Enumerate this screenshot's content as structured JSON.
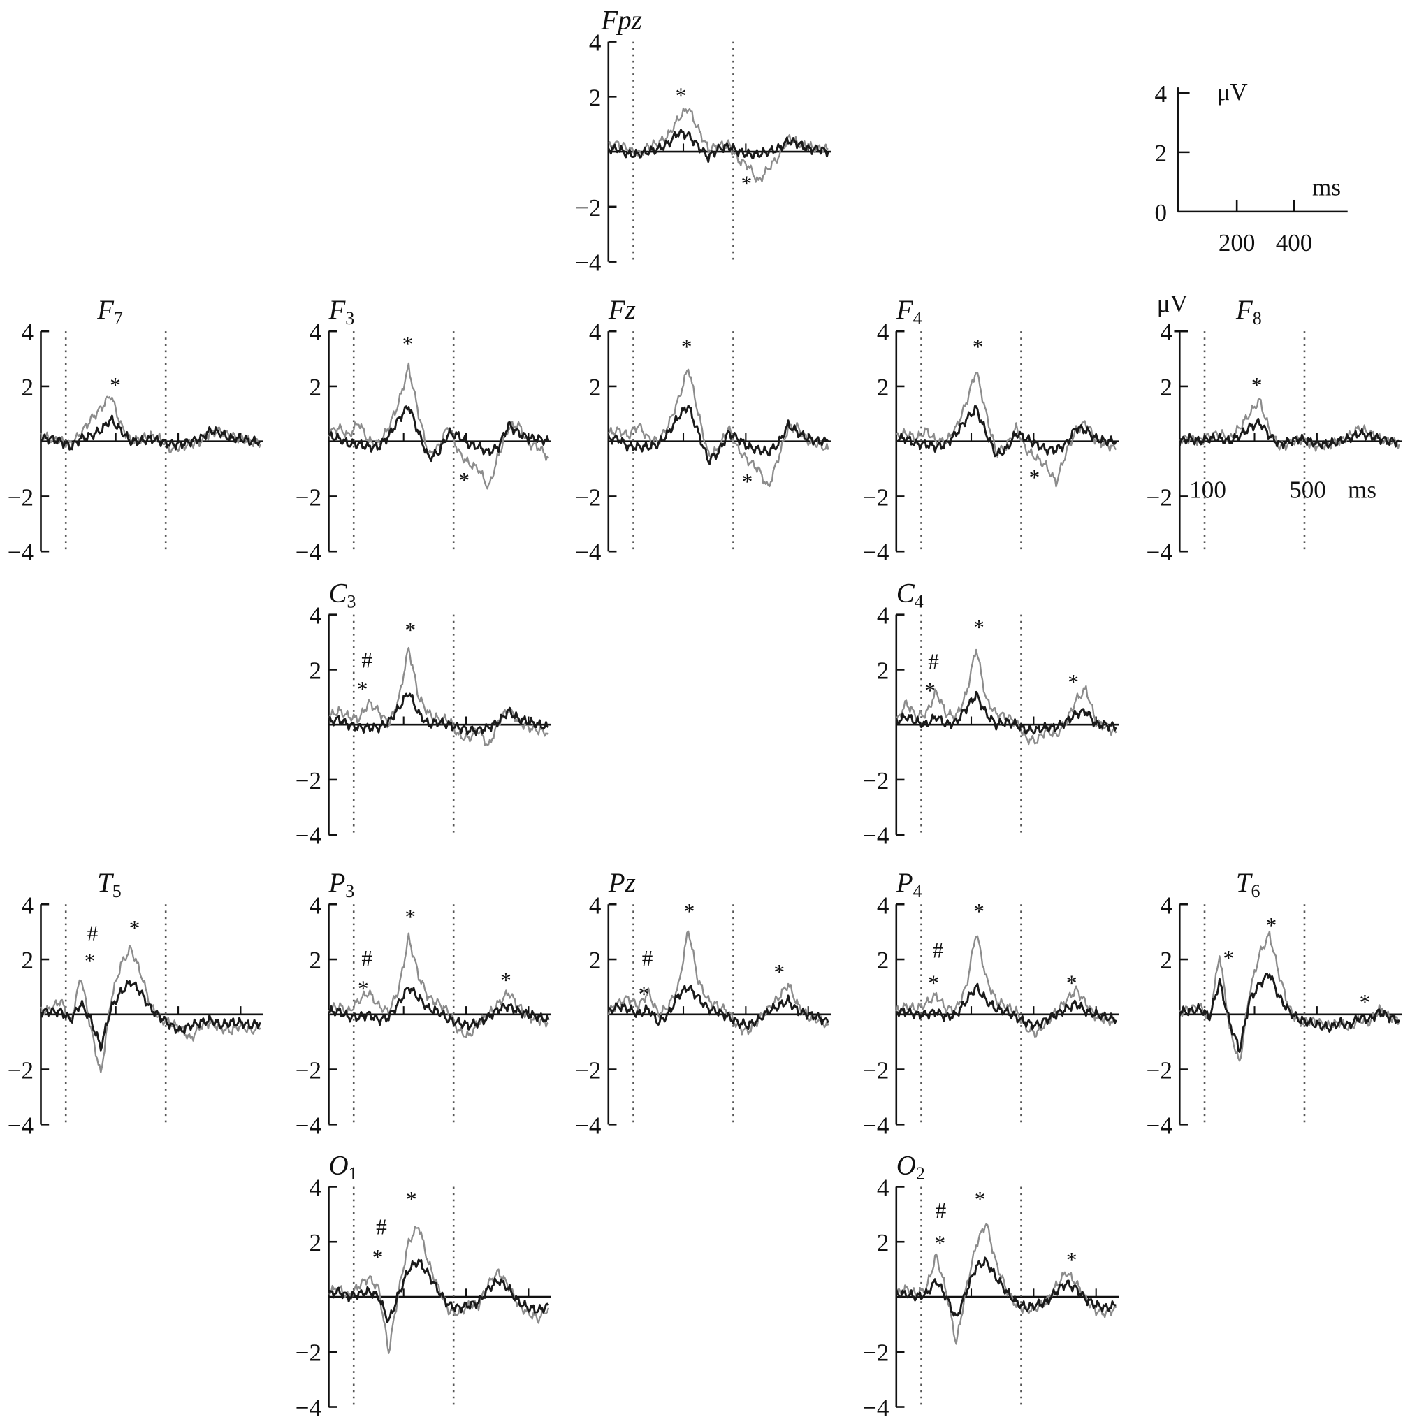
{
  "chart_data": {
    "type": "line",
    "xlabel": "ms",
    "ylabel": "μV",
    "ylim": [
      -4,
      4
    ],
    "xlim": [
      0,
      890
    ],
    "y_ticks": [
      "4",
      "2",
      "−2",
      "−4"
    ],
    "y_tick_values": [
      4,
      2,
      -2,
      -4
    ],
    "x_zero_line_ticks_ms": [
      300,
      550,
      800
    ],
    "dotted_markers_ms": [
      100,
      500
    ],
    "series_colors": {
      "gray": "#8c8c8c",
      "black": "#1a1a1a"
    },
    "time_ms": [
      0,
      40,
      80,
      120,
      160,
      200,
      240,
      280,
      320,
      360,
      400,
      440,
      480,
      520,
      560,
      600,
      640,
      680,
      720,
      760,
      800,
      840,
      880
    ],
    "scale_legend": {
      "unit_y": "μV",
      "unit_x": "ms",
      "y_ticks": [
        "4",
        "2",
        "0"
      ],
      "x_ticks": [
        "200",
        "400"
      ]
    },
    "f8_labels": {
      "unit_y": "μV",
      "t1": "100",
      "t2": "500",
      "unit_x": "ms"
    },
    "panels": [
      {
        "id": "Fpz",
        "label": "Fpz",
        "sub": "",
        "row": 0,
        "col": 2,
        "gray": [
          0.2,
          0.3,
          0.1,
          -0.1,
          0.2,
          0.3,
          0.6,
          1.2,
          1.6,
          0.8,
          0.1,
          0.2,
          0.3,
          -0.3,
          -0.5,
          -1.1,
          -0.6,
          -0.2,
          0.5,
          0.3,
          0.2,
          0.1,
          0.1
        ],
        "black": [
          0.1,
          0.1,
          -0.1,
          -0.1,
          0.0,
          0.1,
          0.3,
          0.7,
          0.6,
          0.2,
          -0.2,
          0.1,
          0.2,
          0.0,
          -0.1,
          -0.1,
          0.0,
          0.1,
          0.4,
          0.3,
          0.1,
          0.1,
          0.0
        ],
        "annotations": [
          {
            "sym": "*",
            "t": 290,
            "v": 2.1
          },
          {
            "sym": "*",
            "t": 553,
            "v": -1.1
          }
        ]
      },
      {
        "id": "F7",
        "label": "F",
        "sub": "7",
        "row": 1,
        "col": 0,
        "gray": [
          0.2,
          0.1,
          0.0,
          -0.1,
          0.3,
          0.8,
          1.2,
          1.7,
          0.6,
          0.0,
          0.1,
          0.2,
          0.1,
          -0.3,
          -0.2,
          -0.1,
          0.0,
          0.3,
          0.4,
          0.2,
          0.1,
          0.0,
          -0.1
        ],
        "black": [
          0.1,
          0.1,
          0.0,
          -0.2,
          0.1,
          0.2,
          0.4,
          0.8,
          0.4,
          0.0,
          0.0,
          0.1,
          0.0,
          -0.1,
          -0.1,
          0.0,
          0.1,
          0.4,
          0.3,
          0.1,
          0.1,
          0.0,
          0.0
        ],
        "annotations": [
          {
            "sym": "*",
            "t": 298,
            "v": 2.1
          }
        ]
      },
      {
        "id": "F3",
        "label": "F",
        "sub": "3",
        "row": 1,
        "col": 1,
        "gray": [
          0.3,
          0.5,
          0.2,
          0.7,
          0.0,
          -0.1,
          0.5,
          1.4,
          2.7,
          1.0,
          -0.5,
          -0.2,
          0.6,
          -0.4,
          -0.8,
          -1.0,
          -1.7,
          -0.5,
          0.5,
          0.6,
          -0.1,
          -0.2,
          -0.6
        ],
        "black": [
          0.2,
          0.1,
          -0.1,
          -0.1,
          -0.2,
          -0.2,
          0.2,
          0.8,
          1.3,
          0.3,
          -0.6,
          -0.4,
          0.3,
          0.2,
          -0.1,
          -0.2,
          -0.4,
          -0.2,
          0.6,
          0.3,
          0.1,
          0.1,
          0.0
        ],
        "annotations": [
          {
            "sym": "*",
            "t": 316,
            "v": 3.6
          },
          {
            "sym": "*",
            "t": 542,
            "v": -1.35
          }
        ]
      },
      {
        "id": "Fz",
        "label": "Fz",
        "sub": "",
        "row": 1,
        "col": 2,
        "gray": [
          0.3,
          0.4,
          0.2,
          0.6,
          0.1,
          0.0,
          0.6,
          1.5,
          2.7,
          1.0,
          -0.5,
          -0.3,
          0.5,
          -0.3,
          -0.7,
          -1.0,
          -1.7,
          -0.6,
          0.5,
          0.5,
          0.0,
          -0.1,
          -0.3
        ],
        "black": [
          0.1,
          0.1,
          -0.2,
          -0.2,
          -0.2,
          -0.1,
          0.3,
          0.9,
          1.3,
          0.3,
          -0.7,
          -0.4,
          0.3,
          0.1,
          -0.2,
          -0.3,
          -0.4,
          -0.1,
          0.6,
          0.3,
          0.1,
          0.0,
          0.0
        ],
        "annotations": [
          {
            "sym": "*",
            "t": 313,
            "v": 3.5
          },
          {
            "sym": "*",
            "t": 556,
            "v": -1.4
          }
        ]
      },
      {
        "id": "F4",
        "label": "F",
        "sub": "4",
        "row": 1,
        "col": 3,
        "gray": [
          0.2,
          0.3,
          0.1,
          0.4,
          0.0,
          0.0,
          0.5,
          1.4,
          2.6,
          1.0,
          -0.4,
          -0.2,
          0.5,
          -0.3,
          -0.6,
          -0.9,
          -1.5,
          -0.4,
          0.4,
          0.7,
          0.0,
          -0.1,
          -0.3
        ],
        "black": [
          0.1,
          0.1,
          -0.1,
          -0.1,
          -0.2,
          -0.1,
          0.3,
          0.8,
          1.2,
          0.3,
          -0.5,
          -0.3,
          0.3,
          0.1,
          -0.1,
          -0.3,
          -0.3,
          -0.1,
          0.5,
          0.4,
          0.1,
          0.0,
          0.0
        ],
        "annotations": [
          {
            "sym": "*",
            "t": 327,
            "v": 3.5
          },
          {
            "sym": "*",
            "t": 553,
            "v": -1.25
          }
        ]
      },
      {
        "id": "F8",
        "label": "F",
        "sub": "8",
        "row": 1,
        "col": 4,
        "gray": [
          0.1,
          0.1,
          0.0,
          0.2,
          0.3,
          0.1,
          0.5,
          1.0,
          1.5,
          0.4,
          -0.2,
          -0.1,
          0.1,
          -0.1,
          -0.2,
          -0.1,
          0.0,
          0.2,
          0.5,
          0.3,
          0.1,
          0.0,
          -0.1
        ],
        "black": [
          0.0,
          0.1,
          0.0,
          0.1,
          0.1,
          0.0,
          0.2,
          0.5,
          0.7,
          0.2,
          -0.1,
          0.0,
          0.1,
          0.0,
          -0.1,
          -0.1,
          0.0,
          0.1,
          0.3,
          0.2,
          0.1,
          0.0,
          0.0
        ],
        "annotations": [
          {
            "sym": "*",
            "t": 309,
            "v": 2.1
          }
        ]
      },
      {
        "id": "C3",
        "label": "C",
        "sub": "3",
        "row": 2,
        "col": 1,
        "gray": [
          0.3,
          0.5,
          0.3,
          0.2,
          0.8,
          0.5,
          0.0,
          0.9,
          2.8,
          1.0,
          0.4,
          0.2,
          0.2,
          -0.4,
          -0.5,
          -0.2,
          -0.8,
          0.1,
          0.6,
          0.1,
          -0.1,
          -0.2,
          -0.3
        ],
        "black": [
          0.1,
          0.2,
          0.0,
          -0.1,
          -0.1,
          -0.1,
          0.1,
          0.6,
          1.2,
          0.4,
          0.0,
          0.1,
          0.0,
          -0.1,
          -0.2,
          -0.2,
          -0.1,
          0.1,
          0.5,
          0.2,
          0.1,
          0.0,
          -0.1
        ],
        "annotations": [
          {
            "sym": "#",
            "t": 153,
            "v": 2.4
          },
          {
            "sym": "*",
            "t": 135,
            "v": 1.35
          },
          {
            "sym": "*",
            "t": 327,
            "v": 3.5
          }
        ]
      },
      {
        "id": "C4",
        "label": "C",
        "sub": "4",
        "row": 2,
        "col": 3,
        "gray": [
          0.1,
          0.8,
          0.3,
          0.4,
          1.2,
          0.4,
          0.3,
          1.1,
          2.8,
          0.9,
          0.4,
          0.3,
          0.1,
          -0.5,
          -0.6,
          -0.2,
          -0.4,
          0.1,
          0.9,
          1.3,
          0.1,
          -0.1,
          -0.3
        ],
        "black": [
          0.1,
          0.3,
          0.1,
          0.0,
          0.3,
          0.0,
          0.1,
          0.6,
          1.1,
          0.4,
          0.0,
          0.1,
          0.0,
          -0.2,
          -0.2,
          -0.1,
          -0.1,
          0.1,
          0.4,
          0.5,
          0.0,
          0.0,
          -0.1
        ],
        "annotations": [
          {
            "sym": "#",
            "t": 149,
            "v": 2.35
          },
          {
            "sym": "*",
            "t": 135,
            "v": 1.3
          },
          {
            "sym": "*",
            "t": 331,
            "v": 3.6
          },
          {
            "sym": "*",
            "t": 709,
            "v": 1.6
          }
        ]
      },
      {
        "id": "T5",
        "label": "T",
        "sub": "5",
        "row": 3,
        "col": 0,
        "gray": [
          0.1,
          0.2,
          0.5,
          -0.3,
          1.4,
          -0.5,
          -2.2,
          0.5,
          1.8,
          2.4,
          1.5,
          0.3,
          -0.2,
          -0.3,
          -0.5,
          -0.9,
          -0.4,
          -0.3,
          -0.5,
          -0.6,
          -0.4,
          -0.6,
          -0.5
        ],
        "black": [
          0.1,
          0.1,
          0.1,
          -0.2,
          0.4,
          -0.2,
          -1.2,
          0.2,
          0.8,
          1.2,
          0.8,
          0.2,
          -0.1,
          -0.4,
          -0.6,
          -0.4,
          -0.3,
          -0.2,
          -0.4,
          -0.3,
          -0.3,
          -0.4,
          -0.3
        ],
        "annotations": [
          {
            "sym": "#",
            "t": 207,
            "v": 3.0
          },
          {
            "sym": "*",
            "t": 196,
            "v": 2.0
          },
          {
            "sym": "*",
            "t": 375,
            "v": 3.2
          }
        ]
      },
      {
        "id": "P3",
        "label": "P",
        "sub": "3",
        "row": 3,
        "col": 1,
        "gray": [
          0.2,
          0.3,
          0.1,
          0.5,
          0.8,
          0.3,
          0.1,
          0.9,
          2.8,
          1.4,
          0.6,
          0.4,
          0.1,
          -0.6,
          -0.8,
          -0.3,
          0.0,
          0.4,
          0.8,
          0.3,
          -0.1,
          -0.2,
          -0.3
        ],
        "black": [
          0.1,
          0.1,
          -0.1,
          -0.1,
          0.0,
          -0.2,
          -0.1,
          0.4,
          1.0,
          0.6,
          0.2,
          0.1,
          -0.2,
          -0.3,
          -0.4,
          -0.3,
          -0.1,
          0.2,
          0.3,
          0.1,
          0.0,
          -0.1,
          -0.2
        ],
        "annotations": [
          {
            "sym": "#",
            "t": 153,
            "v": 2.1
          },
          {
            "sym": "*",
            "t": 138,
            "v": 1.0
          },
          {
            "sym": "*",
            "t": 327,
            "v": 3.6
          },
          {
            "sym": "*",
            "t": 709,
            "v": 1.3
          }
        ]
      },
      {
        "id": "Pz",
        "label": "Pz",
        "sub": "",
        "row": 3,
        "col": 2,
        "gray": [
          0.1,
          0.4,
          0.6,
          0.3,
          0.8,
          0.0,
          0.3,
          1.0,
          3.1,
          1.2,
          0.5,
          0.3,
          0.1,
          -0.5,
          -0.6,
          -0.2,
          0.2,
          0.6,
          1.1,
          0.3,
          -0.1,
          -0.2,
          -0.4
        ],
        "black": [
          0.1,
          0.3,
          0.2,
          0.0,
          0.2,
          -0.3,
          0.0,
          0.7,
          1.0,
          0.6,
          0.2,
          0.1,
          -0.1,
          -0.3,
          -0.4,
          -0.2,
          0.1,
          0.3,
          0.5,
          0.1,
          0.0,
          -0.1,
          -0.3
        ],
        "annotations": [
          {
            "sym": "#",
            "t": 156,
            "v": 2.1
          },
          {
            "sym": "*",
            "t": 142,
            "v": 0.8
          },
          {
            "sym": "*",
            "t": 324,
            "v": 3.8
          },
          {
            "sym": "*",
            "t": 684,
            "v": 1.6
          }
        ]
      },
      {
        "id": "P4",
        "label": "P",
        "sub": "4",
        "row": 3,
        "col": 3,
        "gray": [
          0.1,
          0.3,
          0.2,
          0.4,
          0.7,
          0.2,
          0.2,
          1.0,
          3.0,
          1.3,
          0.5,
          0.3,
          0.1,
          -0.5,
          -0.7,
          -0.3,
          0.1,
          0.5,
          0.9,
          0.4,
          -0.1,
          -0.2,
          -0.3
        ],
        "black": [
          0.1,
          0.1,
          0.0,
          0.0,
          0.1,
          -0.1,
          0.0,
          0.5,
          1.0,
          0.5,
          0.2,
          0.1,
          -0.1,
          -0.3,
          -0.4,
          -0.2,
          0.0,
          0.2,
          0.4,
          0.1,
          0.0,
          -0.1,
          -0.2
        ],
        "annotations": [
          {
            "sym": "#",
            "t": 167,
            "v": 2.4
          },
          {
            "sym": "*",
            "t": 149,
            "v": 1.2
          },
          {
            "sym": "*",
            "t": 331,
            "v": 3.8
          },
          {
            "sym": "*",
            "t": 702,
            "v": 1.2
          }
        ]
      },
      {
        "id": "T6",
        "label": "T",
        "sub": "6",
        "row": 3,
        "col": 4,
        "gray": [
          0.1,
          0.2,
          0.3,
          -0.2,
          2.2,
          -0.5,
          -1.8,
          0.8,
          2.2,
          2.9,
          1.4,
          0.2,
          -0.3,
          -0.2,
          -0.3,
          -0.4,
          -0.3,
          -0.5,
          -0.2,
          -0.3,
          0.2,
          -0.1,
          -0.2
        ],
        "black": [
          0.1,
          0.1,
          0.2,
          -0.1,
          1.2,
          -0.3,
          -1.3,
          0.5,
          1.1,
          1.5,
          0.6,
          0.1,
          -0.2,
          -0.3,
          -0.4,
          -0.5,
          -0.3,
          -0.4,
          -0.1,
          -0.2,
          0.1,
          -0.1,
          -0.2
        ],
        "annotations": [
          {
            "sym": "*",
            "t": 196,
            "v": 2.1
          },
          {
            "sym": "*",
            "t": 367,
            "v": 3.3
          },
          {
            "sym": "*",
            "t": 742,
            "v": 0.5
          }
        ]
      },
      {
        "id": "O1",
        "label": "O",
        "sub": "1",
        "row": 4,
        "col": 1,
        "gray": [
          0.2,
          0.3,
          0.0,
          0.4,
          0.7,
          0.3,
          -2.0,
          0.2,
          2.0,
          2.6,
          1.2,
          0.3,
          -0.5,
          -0.6,
          -0.3,
          -0.3,
          0.5,
          0.9,
          0.4,
          -0.3,
          -0.6,
          -0.8,
          -0.4
        ],
        "black": [
          0.1,
          0.2,
          0.0,
          0.1,
          0.2,
          0.0,
          -0.9,
          0.1,
          1.0,
          1.3,
          0.8,
          0.2,
          -0.3,
          -0.4,
          -0.3,
          -0.2,
          0.3,
          0.6,
          0.3,
          -0.2,
          -0.4,
          -0.5,
          -0.3
        ],
        "annotations": [
          {
            "sym": "#",
            "t": 211,
            "v": 2.6
          },
          {
            "sym": "*",
            "t": 196,
            "v": 1.5
          },
          {
            "sym": "*",
            "t": 331,
            "v": 3.6
          }
        ]
      },
      {
        "id": "O2",
        "label": "O",
        "sub": "2",
        "row": 4,
        "col": 3,
        "gray": [
          0.1,
          0.3,
          0.1,
          0.3,
          1.5,
          0.2,
          -1.7,
          0.3,
          1.9,
          2.7,
          1.2,
          0.3,
          -0.3,
          -0.5,
          -0.4,
          -0.2,
          0.4,
          0.9,
          0.5,
          -0.1,
          -0.5,
          -0.6,
          -0.4
        ],
        "black": [
          0.1,
          0.1,
          0.0,
          0.1,
          0.6,
          0.0,
          -0.8,
          0.2,
          1.1,
          1.3,
          0.7,
          0.2,
          -0.2,
          -0.4,
          -0.3,
          -0.2,
          0.2,
          0.5,
          0.3,
          -0.1,
          -0.3,
          -0.4,
          -0.3
        ],
        "annotations": [
          {
            "sym": "#",
            "t": 178,
            "v": 3.2
          },
          {
            "sym": "*",
            "t": 175,
            "v": 2.0
          },
          {
            "sym": "*",
            "t": 335,
            "v": 3.6
          },
          {
            "sym": "*",
            "t": 702,
            "v": 1.4
          }
        ]
      }
    ]
  }
}
